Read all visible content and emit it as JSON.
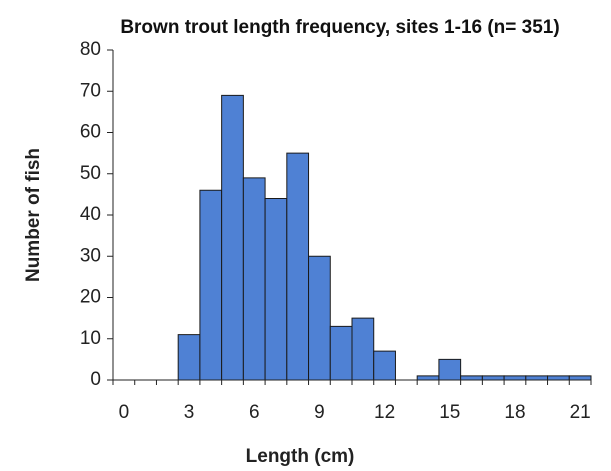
{
  "chart_data": {
    "type": "bar",
    "title": "Brown trout length frequency, sites 1-16 (n= 351)",
    "xlabel": "Length (cm)",
    "ylabel": "Number of fish",
    "categories": [
      0,
      null,
      null,
      3,
      null,
      null,
      6,
      null,
      null,
      9,
      null,
      null,
      12,
      null,
      null,
      15,
      null,
      null,
      18,
      null,
      null,
      21
    ],
    "values": [
      0,
      0,
      0,
      11,
      46,
      69,
      49,
      44,
      55,
      30,
      13,
      15,
      7,
      0,
      1,
      5,
      1,
      1,
      1,
      1,
      1,
      1
    ],
    "color": "#4f81d4",
    "ylim": [
      0,
      80
    ],
    "yticks": [
      0,
      10,
      20,
      30,
      40,
      50,
      60,
      70,
      80
    ],
    "grid": false
  }
}
